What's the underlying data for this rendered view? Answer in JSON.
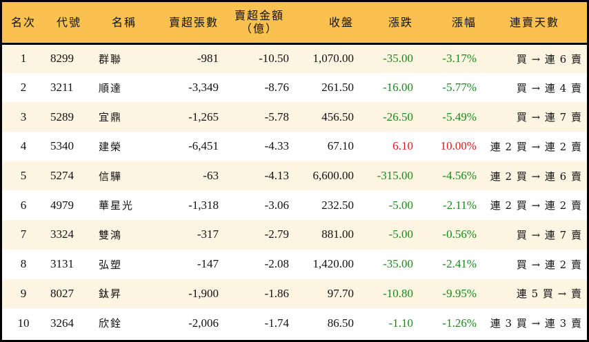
{
  "table": {
    "headers": [
      "名次",
      "代號",
      "名稱",
      "賣超張數",
      "賣超金額\n（億）",
      "收盤",
      "漲跌",
      "漲幅",
      "連賣天數"
    ],
    "header_amount_line1": "賣超金額",
    "header_amount_line2": "（億）",
    "rows": [
      {
        "rank": "1",
        "code": "8299",
        "name": "群聯",
        "shares": "-981",
        "amount": "-10.50",
        "close": "1,070.00",
        "change": "-35.00",
        "pct": "-3.17%",
        "streak": "買 → 連 6 賣",
        "dir": "neg"
      },
      {
        "rank": "2",
        "code": "3211",
        "name": "順達",
        "shares": "-3,349",
        "amount": "-8.76",
        "close": "261.50",
        "change": "-16.00",
        "pct": "-5.77%",
        "streak": "買 → 連 4 賣",
        "dir": "neg"
      },
      {
        "rank": "3",
        "code": "5289",
        "name": "宜鼎",
        "shares": "-1,265",
        "amount": "-5.78",
        "close": "456.50",
        "change": "-26.50",
        "pct": "-5.49%",
        "streak": "買 → 連 7 賣",
        "dir": "neg"
      },
      {
        "rank": "4",
        "code": "5340",
        "name": "建榮",
        "shares": "-6,451",
        "amount": "-4.33",
        "close": "67.10",
        "change": "6.10",
        "pct": "10.00%",
        "streak": "連 2 買 → 連 2 賣",
        "dir": "pos"
      },
      {
        "rank": "5",
        "code": "5274",
        "name": "信驊",
        "shares": "-63",
        "amount": "-4.13",
        "close": "6,600.00",
        "change": "-315.00",
        "pct": "-4.56%",
        "streak": "連 2 買 → 連 6 賣",
        "dir": "neg"
      },
      {
        "rank": "6",
        "code": "4979",
        "name": "華星光",
        "shares": "-1,318",
        "amount": "-3.06",
        "close": "232.50",
        "change": "-5.00",
        "pct": "-2.11%",
        "streak": "連 2 買 → 連 2 賣",
        "dir": "neg"
      },
      {
        "rank": "7",
        "code": "3324",
        "name": "雙鴻",
        "shares": "-317",
        "amount": "-2.79",
        "close": "881.00",
        "change": "-5.00",
        "pct": "-0.56%",
        "streak": "買 → 連 7 賣",
        "dir": "neg"
      },
      {
        "rank": "8",
        "code": "3131",
        "name": "弘塑",
        "shares": "-147",
        "amount": "-2.08",
        "close": "1,420.00",
        "change": "-35.00",
        "pct": "-2.41%",
        "streak": "買 → 連 2 賣",
        "dir": "neg"
      },
      {
        "rank": "9",
        "code": "8027",
        "name": "鈦昇",
        "shares": "-1,900",
        "amount": "-1.86",
        "close": "97.70",
        "change": "-10.80",
        "pct": "-9.95%",
        "streak": "連 5 買 → 賣",
        "dir": "neg"
      },
      {
        "rank": "10",
        "code": "3264",
        "name": "欣銓",
        "shares": "-2,006",
        "amount": "-1.74",
        "close": "86.50",
        "change": "-1.10",
        "pct": "-1.26%",
        "streak": "連 3 買 → 連 3 賣",
        "dir": "neg"
      }
    ]
  },
  "colors": {
    "header_bg": "#F8C150",
    "row_odd": "#FDF4E2",
    "row_even": "#FFFFFF",
    "down": "#1A8A1A",
    "up": "#E8141B",
    "border": "#000000"
  }
}
